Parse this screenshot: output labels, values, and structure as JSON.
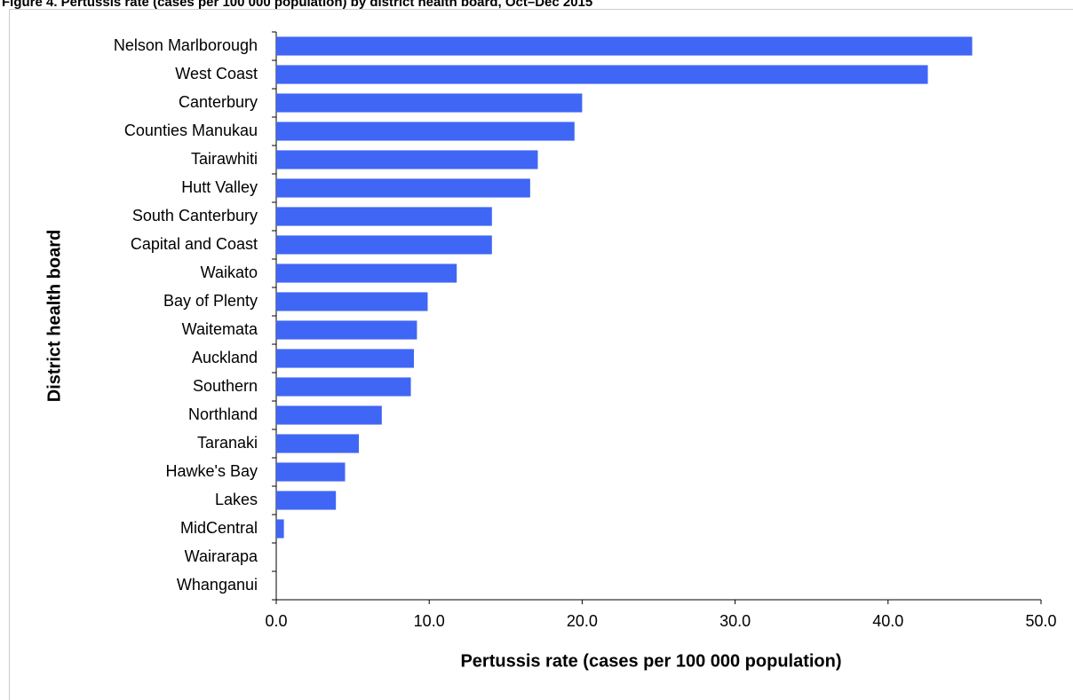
{
  "chart_data": {
    "type": "bar",
    "orientation": "horizontal",
    "title": "Figure 4. Pertussis rate (cases per 100 000 population) by district health board, Oct–Dec 2015",
    "xlabel": "Pertussis rate (cases per 100 000 population)",
    "ylabel": "District health board",
    "categories": [
      "Nelson Marlborough",
      "West Coast",
      "Canterbury",
      "Counties Manukau",
      "Tairawhiti",
      "Hutt Valley",
      "South Canterbury",
      "Capital and Coast",
      "Waikato",
      "Bay of Plenty",
      "Waitemata",
      "Auckland",
      "Southern",
      "Northland",
      "Taranaki",
      "Hawke's Bay",
      "Lakes",
      "MidCentral",
      "Wairarapa",
      "Whanganui"
    ],
    "values": [
      45.5,
      42.6,
      20.0,
      19.5,
      17.1,
      16.6,
      14.1,
      14.1,
      11.8,
      9.9,
      9.2,
      9.0,
      8.8,
      6.9,
      5.4,
      4.5,
      3.9,
      0.5,
      0,
      0
    ],
    "color": "#3f66f5",
    "xlim": [
      0,
      50
    ],
    "xticks": [
      {
        "value": 0,
        "label": "0.0"
      },
      {
        "value": 10,
        "label": "10.0"
      },
      {
        "value": 20,
        "label": "20.0"
      },
      {
        "value": 30,
        "label": "30.0"
      },
      {
        "value": 40,
        "label": "40.0"
      },
      {
        "value": 50,
        "label": "50.0"
      }
    ],
    "grid": false
  }
}
